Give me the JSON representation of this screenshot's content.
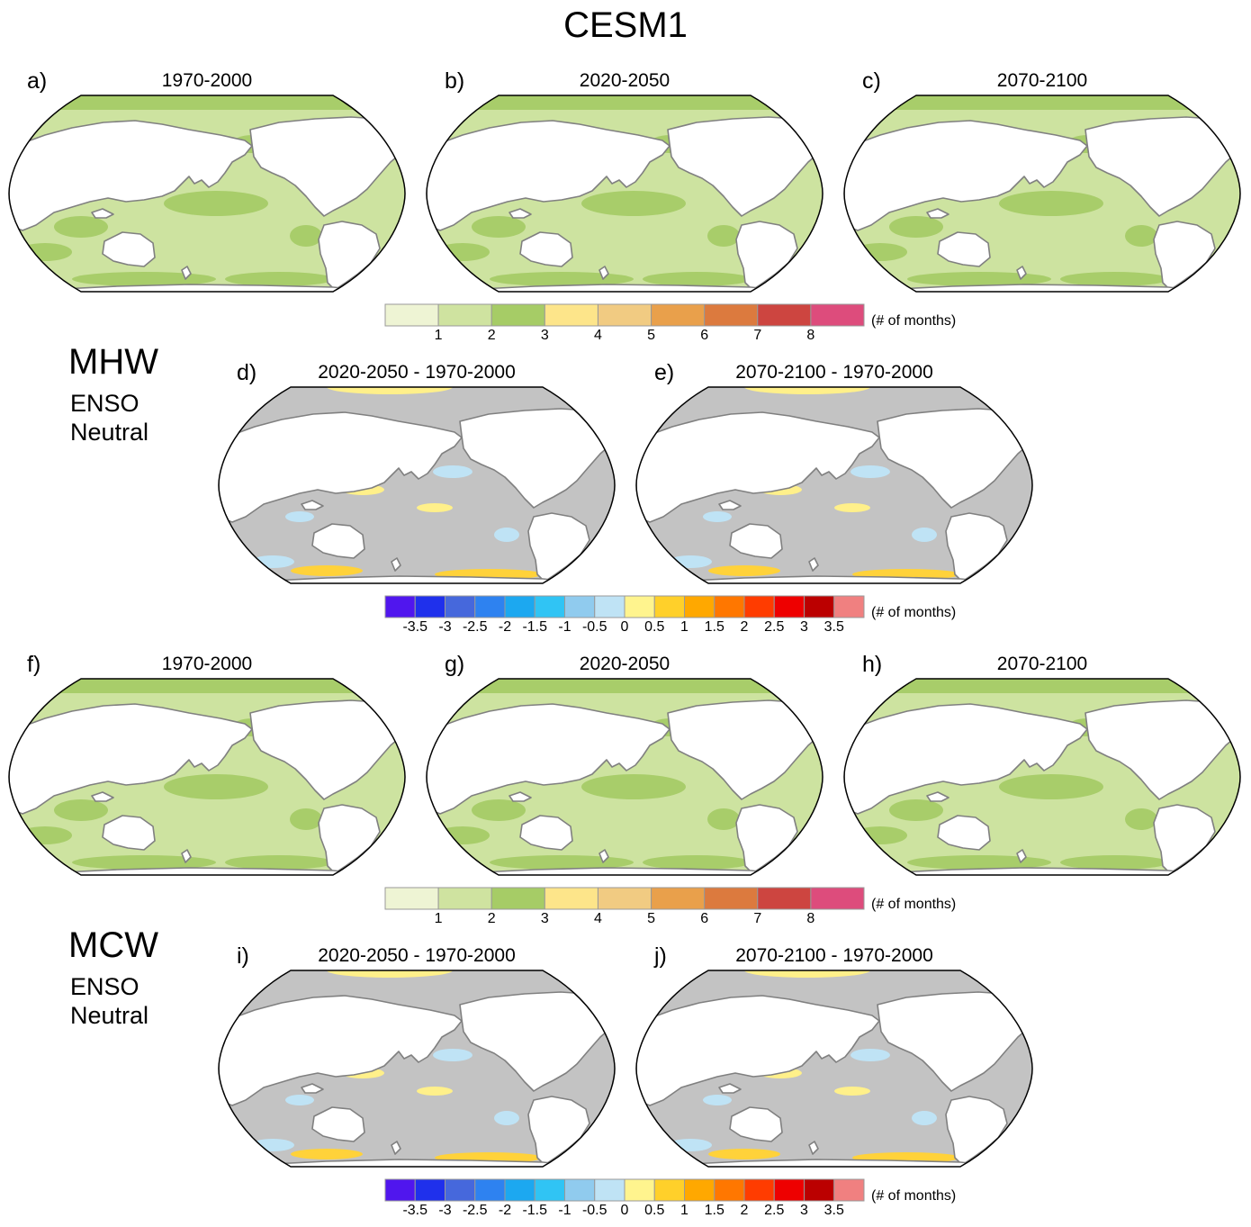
{
  "figure": {
    "title": "CESM1",
    "sections": [
      {
        "name": "MHW",
        "subtitle_lines": [
          "ENSO",
          "Neutral"
        ]
      },
      {
        "name": "MCW",
        "subtitle_lines": [
          "ENSO",
          "Neutral"
        ]
      }
    ],
    "panels": [
      {
        "letter": "a)",
        "title": "1970-2000",
        "kind": "absolute"
      },
      {
        "letter": "b)",
        "title": "2020-2050",
        "kind": "absolute"
      },
      {
        "letter": "c)",
        "title": "2070-2100",
        "kind": "absolute"
      },
      {
        "letter": "d)",
        "title": "2020-2050 - 1970-2000",
        "kind": "difference"
      },
      {
        "letter": "e)",
        "title": "2070-2100 - 1970-2000",
        "kind": "difference"
      },
      {
        "letter": "f)",
        "title": "1970-2000",
        "kind": "absolute"
      },
      {
        "letter": "g)",
        "title": "2020-2050",
        "kind": "absolute"
      },
      {
        "letter": "h)",
        "title": "2070-2100",
        "kind": "absolute"
      },
      {
        "letter": "i)",
        "title": "2020-2050 - 1970-2000",
        "kind": "difference"
      },
      {
        "letter": "j)",
        "title": "2070-2100 - 1970-2000",
        "kind": "difference"
      }
    ]
  },
  "colorbars": {
    "absolute": {
      "unit": "(# of months)",
      "colors": [
        "#eef4d4",
        "#cfe3a0",
        "#a6cc66",
        "#fde58a",
        "#f1cb82",
        "#e9a04b",
        "#dc7a3e",
        "#cd4540",
        "#dd4c7c"
      ],
      "labels": [
        "1",
        "2",
        "3",
        "4",
        "5",
        "6",
        "7",
        "8"
      ]
    },
    "difference": {
      "unit": "(# of months)",
      "colors": [
        "#5016ee",
        "#1f30ec",
        "#4668dc",
        "#2e82f0",
        "#1ca8f0",
        "#30c4f4",
        "#90cbee",
        "#bfe3f5",
        "#fff48e",
        "#ffd02a",
        "#ffa800",
        "#ff7700",
        "#ff3c00",
        "#ee0000",
        "#bb0000",
        "#f08080"
      ],
      "labels": [
        "-3.5",
        "-3",
        "-2.5",
        "-2",
        "-1.5",
        "-1",
        "-0.5",
        "0",
        "0.5",
        "1",
        "1.5",
        "2",
        "2.5",
        "3",
        "3.5"
      ]
    }
  },
  "map_colors": {
    "ocean_base_absolute": "#cde3a0",
    "ocean_patch_absolute": "#a8cd6a",
    "ocean_base_difference": "#c3c3c3",
    "positive_patch": "#fff08a",
    "strong_positive_patch": "#ffd23a",
    "negative_patch": "#bfe3f5",
    "land": "#ffffff",
    "coastline": "#808080"
  }
}
